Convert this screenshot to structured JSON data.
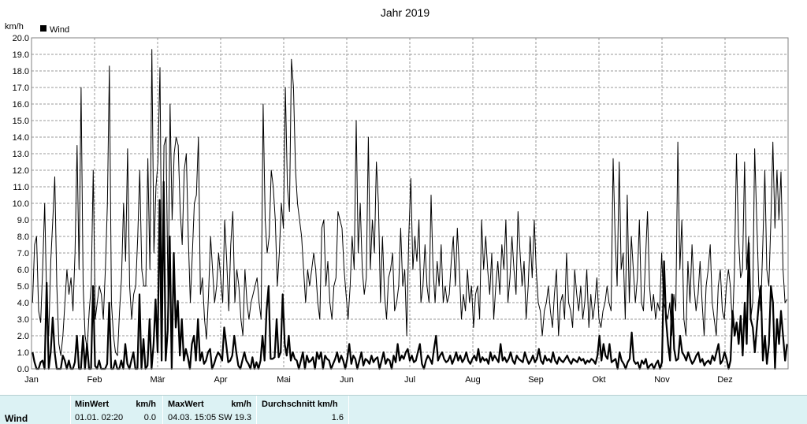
{
  "chart_data": {
    "type": "line",
    "title": "Jahr 2019",
    "ylabel": "km/h",
    "legend": "Wind",
    "legend_position": "top-left",
    "grid": true,
    "ylim": [
      0,
      20
    ],
    "yticks": [
      "0.0",
      "1.0",
      "2.0",
      "3.0",
      "4.0",
      "5.0",
      "6.0",
      "7.0",
      "8.0",
      "9.0",
      "10.0",
      "11.0",
      "12.0",
      "13.0",
      "14.0",
      "15.0",
      "16.0",
      "17.0",
      "18.0",
      "19.0",
      "20.0"
    ],
    "months": [
      "Jan",
      "Feb",
      "Mär",
      "Apr",
      "Mai",
      "Jun",
      "Jul",
      "Aug",
      "Sep",
      "Okt",
      "Nov",
      "Dez"
    ],
    "series": [
      {
        "name": "Wind max",
        "values": [
          4.0,
          7.5,
          8.0,
          3.5,
          2.8,
          6.0,
          10.0,
          4.0,
          2.0,
          6.5,
          9.0,
          11.6,
          5.0,
          1.5,
          0.8,
          2.0,
          4.0,
          6.0,
          4.5,
          5.5,
          3.5,
          7.0,
          13.5,
          6.0,
          17.0,
          5.0,
          2.0,
          1.2,
          3.5,
          5.0,
          12.0,
          3.0,
          4.0,
          5.0,
          4.5,
          3.0,
          6.0,
          10.0,
          18.3,
          4.0,
          2.0,
          1.0,
          0.8,
          3.5,
          5.5,
          10.0,
          6.5,
          13.3,
          5.0,
          3.0,
          4.5,
          5.0,
          8.0,
          12.0,
          6.0,
          5.0,
          5.0,
          12.7,
          6.0,
          19.3,
          7.0,
          11.0,
          12.5,
          18.2,
          3.0,
          13.5,
          14.0,
          4.0,
          16.0,
          9.0,
          13.0,
          14.0,
          13.5,
          9.5,
          7.5,
          12.0,
          13.0,
          8.0,
          4.0,
          7.0,
          10.0,
          10.5,
          14.0,
          4.5,
          5.5,
          3.0,
          1.8,
          4.5,
          8.0,
          6.0,
          4.0,
          5.0,
          7.0,
          5.5,
          4.0,
          9.0,
          6.5,
          3.5,
          7.5,
          9.5,
          4.0,
          6.0,
          5.0,
          3.0,
          2.0,
          6.0,
          4.0,
          3.0,
          4.0,
          4.5,
          5.0,
          5.5,
          4.0,
          3.0,
          16.0,
          9.0,
          7.0,
          8.0,
          12.0,
          11.0,
          9.0,
          5.0,
          7.0,
          10.0,
          8.5,
          17.0,
          11.0,
          9.5,
          18.7,
          17.0,
          12.0,
          10.0,
          9.0,
          8.0,
          6.0,
          4.0,
          6.0,
          5.0,
          6.0,
          7.0,
          6.0,
          4.0,
          3.0,
          8.5,
          9.0,
          5.0,
          6.5,
          4.0,
          3.0,
          5.0,
          5.5,
          9.5,
          9.0,
          8.5,
          6.0,
          4.5,
          3.0,
          5.0,
          8.0,
          6.0,
          15.0,
          7.0,
          10.0,
          6.0,
          4.5,
          5.5,
          14.0,
          6.0,
          9.0,
          7.0,
          12.5,
          10.0,
          4.0,
          8.0,
          4.5,
          3.0,
          5.5,
          6.0,
          7.0,
          3.5,
          4.0,
          5.0,
          8.5,
          5.0,
          6.0,
          2.0,
          8.0,
          11.5,
          6.0,
          8.0,
          6.5,
          9.0,
          4.0,
          5.0,
          7.5,
          5.0,
          4.0,
          10.5,
          6.0,
          4.0,
          6.5,
          5.0,
          7.5,
          4.0,
          5.0,
          4.0,
          4.5,
          6.5,
          8.0,
          5.0,
          8.5,
          6.0,
          3.0,
          4.5,
          3.5,
          6.0,
          4.0,
          5.0,
          2.5,
          4.5,
          5.0,
          3.0,
          9.0,
          6.0,
          8.0,
          6.0,
          4.5,
          7.0,
          3.0,
          5.0,
          6.5,
          4.5,
          7.5,
          6.0,
          9.0,
          4.0,
          5.5,
          8.0,
          6.0,
          4.5,
          9.5,
          7.0,
          5.0,
          6.5,
          3.0,
          5.0,
          8.0,
          5.5,
          9.0,
          6.0,
          4.0,
          3.5,
          2.0,
          3.5,
          4.0,
          5.0,
          3.5,
          2.5,
          4.5,
          6.0,
          2.0,
          4.0,
          4.5,
          3.0,
          7.0,
          4.0,
          3.5,
          2.5,
          6.0,
          4.5,
          3.5,
          5.0,
          3.0,
          4.0,
          6.0,
          2.5,
          4.5,
          3.0,
          4.0,
          5.5,
          3.0,
          2.5,
          3.5,
          4.0,
          5.0,
          4.0,
          3.5,
          12.7,
          8.0,
          5.0,
          12.5,
          6.0,
          7.0,
          3.0,
          10.5,
          4.0,
          8.0,
          6.0,
          4.0,
          5.5,
          9.0,
          4.0,
          3.5,
          6.5,
          9.5,
          5.0,
          3.5,
          4.5,
          3.0,
          4.0,
          3.5,
          7.0,
          4.0,
          3.5,
          3.0,
          4.0,
          2.0,
          4.5,
          3.5,
          13.7,
          6.0,
          9.0,
          3.0,
          2.0,
          6.5,
          4.0,
          7.5,
          5.0,
          3.5,
          4.5,
          6.5,
          4.0,
          2.0,
          5.0,
          6.0,
          7.5,
          4.0,
          3.0,
          2.0,
          5.0,
          6.0,
          3.5,
          3.0,
          5.0,
          6.0,
          5.0,
          2.5,
          6.0,
          13.0,
          8.0,
          5.5,
          6.0,
          12.5,
          6.0,
          8.0,
          3.0,
          4.0,
          13.3,
          9.0,
          5.0,
          3.5,
          7.5,
          12.0,
          6.0,
          5.0,
          9.0,
          13.7,
          8.5,
          12.0,
          9.0,
          11.9,
          6.0,
          4.0,
          4.2
        ]
      },
      {
        "name": "Wind avg",
        "values": [
          1.0,
          0.4,
          0.0,
          0.0,
          0.4,
          0.5,
          0.0,
          5.2,
          0.0,
          1.0,
          3.1,
          1.0,
          0.0,
          0.0,
          0.0,
          0.8,
          0.5,
          0.0,
          0.5,
          0.0,
          0.0,
          0.4,
          2.0,
          0.0,
          0.0,
          2.0,
          0.0,
          1.5,
          0.0,
          0.0,
          5.0,
          0.2,
          0.0,
          0.5,
          0.0,
          0.0,
          0.0,
          0.3,
          4.0,
          0.0,
          0.0,
          0.5,
          0.0,
          0.0,
          0.5,
          0.0,
          1.5,
          0.3,
          0.0,
          0.5,
          1.0,
          0.0,
          0.0,
          4.5,
          0.0,
          1.8,
          0.0,
          0.2,
          3.0,
          0.0,
          1.5,
          4.2,
          1.0,
          10.2,
          0.5,
          11.3,
          0.5,
          2.3,
          8.0,
          0.0,
          7.0,
          2.5,
          4.1,
          0.8,
          3.0,
          0.5,
          1.2,
          0.7,
          0.0,
          1.5,
          2.0,
          0.5,
          3.0,
          0.5,
          1.0,
          0.3,
          0.5,
          1.0,
          1.2,
          0.0,
          0.3,
          0.7,
          1.0,
          0.8,
          0.5,
          2.5,
          1.5,
          0.4,
          0.5,
          0.8,
          2.0,
          1.0,
          0.2,
          0.0,
          0.5,
          1.0,
          0.5,
          0.3,
          0.0,
          0.7,
          0.0,
          0.4,
          0.0,
          0.5,
          2.0,
          0.5,
          3.5,
          5.0,
          0.6,
          0.6,
          0.7,
          3.0,
          0.7,
          1.0,
          4.5,
          1.5,
          0.8,
          2.0,
          0.5,
          1.0,
          0.6,
          0.5,
          0.0,
          0.5,
          1.0,
          0.0,
          0.8,
          0.4,
          0.5,
          0.7,
          0.0,
          1.0,
          0.6,
          1.0,
          0.0,
          0.8,
          0.6,
          0.5,
          0.0,
          0.3,
          0.6,
          1.0,
          0.4,
          0.8,
          0.5,
          0.0,
          0.6,
          1.5,
          0.3,
          0.8,
          0.6,
          0.0,
          0.5,
          1.0,
          0.2,
          0.6,
          0.5,
          0.3,
          0.8,
          0.4,
          0.6,
          0.7,
          0.0,
          0.5,
          1.0,
          0.3,
          0.6,
          0.5,
          0.0,
          0.8,
          0.4,
          1.5,
          0.5,
          0.8,
          0.6,
          1.0,
          1.2,
          0.5,
          0.8,
          0.4,
          0.5,
          1.0,
          1.5,
          0.3,
          0.0,
          0.5,
          0.8,
          0.6,
          0.3,
          1.2,
          2.0,
          0.5,
          0.8,
          1.0,
          0.6,
          0.4,
          0.5,
          0.8,
          0.3,
          0.6,
          1.0,
          0.5,
          0.8,
          0.4,
          0.6,
          1.0,
          0.5,
          0.3,
          0.6,
          0.8,
          0.5,
          1.2,
          0.4,
          0.7,
          0.5,
          0.6,
          0.3,
          1.0,
          0.5,
          0.8,
          0.6,
          0.4,
          1.5,
          0.5,
          0.7,
          0.4,
          0.6,
          1.0,
          0.5,
          0.3,
          0.8,
          0.6,
          0.5,
          0.4,
          1.0,
          0.6,
          0.3,
          0.5,
          0.8,
          0.4,
          0.6,
          1.2,
          0.5,
          0.3,
          0.8,
          0.5,
          0.6,
          0.4,
          1.0,
          0.5,
          0.3,
          0.7,
          0.5,
          0.4,
          0.6,
          0.8,
          0.5,
          0.3,
          0.6,
          0.5,
          0.4,
          0.7,
          0.5,
          0.6,
          0.3,
          0.5,
          0.4,
          0.6,
          0.5,
          0.3,
          0.8,
          2.0,
          0.5,
          1.5,
          0.8,
          0.6,
          1.5,
          0.4,
          0.5,
          0.6,
          0.0,
          1.0,
          0.5,
          0.3,
          0.0,
          0.4,
          0.6,
          2.2,
          0.5,
          0.3,
          0.4,
          0.0,
          0.5,
          0.3,
          0.6,
          0.0,
          0.2,
          0.3,
          0.0,
          0.3,
          0.5,
          0.0,
          0.4,
          6.5,
          3.0,
          1.5,
          0.5,
          4.5,
          1.2,
          0.5,
          0.6,
          2.0,
          1.0,
          0.8,
          0.5,
          1.0,
          0.6,
          0.3,
          0.5,
          0.8,
          1.0,
          0.4,
          0.6,
          0.2,
          0.4,
          0.5,
          0.3,
          0.8,
          0.5,
          1.0,
          1.5,
          0.3,
          0.5,
          1.0,
          0.6,
          0.0,
          0.5,
          3.5,
          2.0,
          2.8,
          1.5,
          3.2,
          0.8,
          4.0,
          1.5,
          7.6,
          3.0,
          2.5,
          1.0,
          2.5,
          4.0,
          5.0,
          0.5,
          2.0,
          0.3,
          1.5,
          5.0,
          4.0,
          0.0,
          3.0,
          1.5,
          3.5,
          2.0,
          0.5,
          1.5
        ]
      }
    ]
  },
  "stats": {
    "row_label": "Wind",
    "min_header": "MinWert",
    "min_unit": "km/h",
    "min_time": "01.01.  02:20",
    "min_value": "0.0",
    "max_header": "MaxWert",
    "max_unit": "km/h",
    "max_time": "04.03.  15:05",
    "max_value": "SW 19.3",
    "avg_header": "Durchschnitt km/h",
    "avg_value": "1.6"
  }
}
